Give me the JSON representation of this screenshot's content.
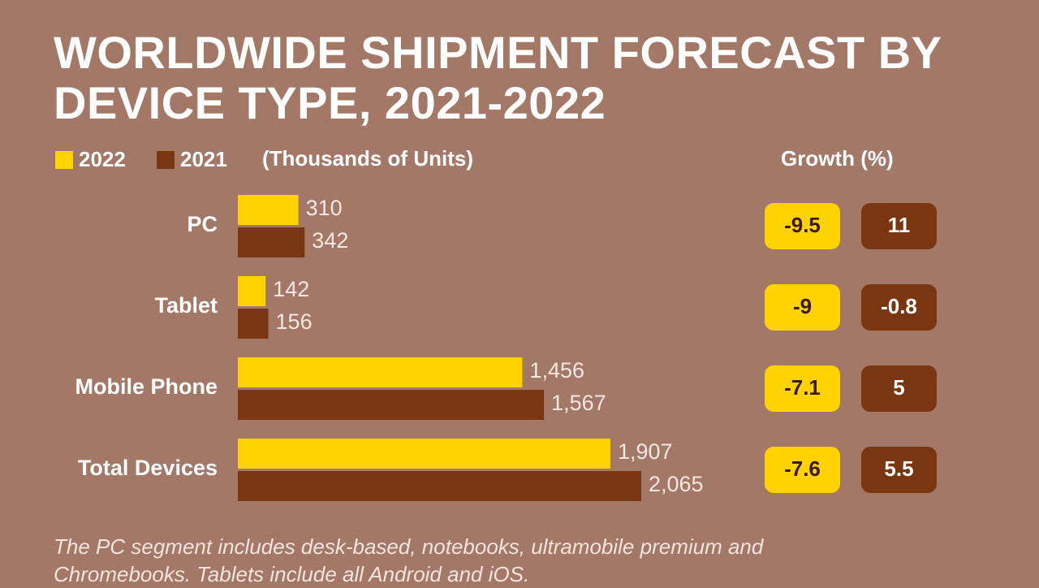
{
  "chart_data": {
    "type": "bar",
    "title": "WORLDWIDE SHIPMENT FORECAST BY DEVICE TYPE, 2021-2022",
    "subtitle": "(Thousands of Units)",
    "growth_title": "Growth (%)",
    "categories": [
      "PC",
      "Tablet",
      "Mobile Phone",
      "Total Devices"
    ],
    "series": [
      {
        "name": "2022",
        "color": "#ffd200",
        "values": [
          310,
          142,
          1456,
          1907
        ],
        "value_labels": [
          "310",
          "142",
          "1,456",
          "1,907"
        ],
        "growth": [
          -9.5,
          -9,
          -7.1,
          -7.6
        ]
      },
      {
        "name": "2021",
        "color": "#7a3610",
        "values": [
          342,
          156,
          1567,
          2065
        ],
        "value_labels": [
          "342",
          "156",
          "1,567",
          "2,065"
        ],
        "growth": [
          11,
          -0.8,
          5,
          5.5
        ]
      }
    ],
    "footnote": "The PC segment includes desk-based, notebooks, ultramobile premium and Chromebooks. Tablets include all Android and iOS."
  }
}
